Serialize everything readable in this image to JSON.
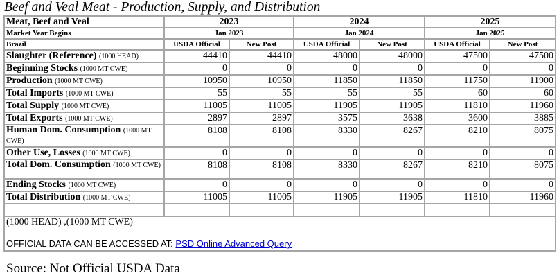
{
  "title": "Beef and Veal Meat - Production, Supply, and Distribution",
  "header": {
    "commodity": "Meat, Beef and Veal",
    "market_year_label": "Market Year Begins",
    "country": "Brazil",
    "years": [
      "2023",
      "2024",
      "2025"
    ],
    "market_year_begins": [
      "Jan 2023",
      "Jan 2024",
      "Jan 2025"
    ],
    "subcolumns": [
      "USDA Official",
      "New Post",
      "USDA Official",
      "New Post",
      "USDA Official",
      "New Post"
    ]
  },
  "rows": [
    {
      "label": "Slaughter (Reference)",
      "unit": "(1000 HEAD)",
      "values": [
        "44410",
        "44410",
        "48000",
        "48000",
        "47500",
        "47500"
      ]
    },
    {
      "label": "Beginning Stocks",
      "unit": "(1000 MT CWE)",
      "values": [
        "0",
        "0",
        "0",
        "0",
        "0",
        "0"
      ]
    },
    {
      "label": "Production",
      "unit": "(1000 MT CWE)",
      "values": [
        "10950",
        "10950",
        "11850",
        "11850",
        "11750",
        "11900"
      ]
    },
    {
      "label": "Total Imports",
      "unit": "(1000 MT CWE)",
      "values": [
        "55",
        "55",
        "55",
        "55",
        "60",
        "60"
      ]
    },
    {
      "label": "Total Supply",
      "unit": "(1000 MT CWE)",
      "values": [
        "11005",
        "11005",
        "11905",
        "11905",
        "11810",
        "11960"
      ]
    },
    {
      "label": "Total Exports",
      "unit": "(1000 MT CWE)",
      "values": [
        "2897",
        "2897",
        "3575",
        "3638",
        "3600",
        "3885"
      ]
    },
    {
      "label": "Human Dom. Consumption",
      "unit": "(1000 MT CWE)",
      "values": [
        "8108",
        "8108",
        "8330",
        "8267",
        "8210",
        "8075"
      ],
      "tall": true
    },
    {
      "label": "Other Use, Losses",
      "unit": "(1000 MT CWE)",
      "values": [
        "0",
        "0",
        "0",
        "0",
        "0",
        "0"
      ]
    },
    {
      "label": "Total Dom. Consumption",
      "unit": "(1000 MT CWE)",
      "values": [
        "8108",
        "8108",
        "8330",
        "8267",
        "8210",
        "8075"
      ],
      "tall": true
    },
    {
      "label": "Ending Stocks",
      "unit": "(1000 MT CWE)",
      "values": [
        "0",
        "0",
        "0",
        "0",
        "0",
        "0"
      ]
    },
    {
      "label": "Total Distribution",
      "unit": "(1000 MT CWE)",
      "values": [
        "11005",
        "11005",
        "11905",
        "11905",
        "11810",
        "11960"
      ]
    }
  ],
  "units_note": "(1000 HEAD) ,(1000 MT CWE)",
  "official": {
    "text": "OFFICIAL DATA CAN BE ACCESSED AT: ",
    "link_label": "PSD Online Advanced Query",
    "link_color": "#0000cc"
  },
  "source": "Source: Not Official USDA Data"
}
